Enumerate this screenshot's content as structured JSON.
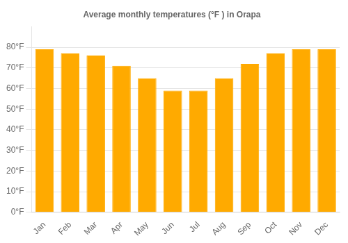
{
  "chart_data": {
    "type": "bar",
    "title": "Average monthly temperatures (°F ) in Orapa",
    "categories": [
      "Jan",
      "Feb",
      "Mar",
      "Apr",
      "May",
      "Jun",
      "Jul",
      "Aug",
      "Sep",
      "Oct",
      "Nov",
      "Dec"
    ],
    "values": [
      79,
      77,
      76,
      71,
      65,
      59,
      59,
      65,
      72,
      77,
      79,
      79
    ],
    "color": "#FFAA00",
    "ylim": [
      0,
      90
    ],
    "yticks": [
      {
        "value": 0,
        "label": "0°F"
      },
      {
        "value": 10,
        "label": "10°F"
      },
      {
        "value": 20,
        "label": "20°F"
      },
      {
        "value": 30,
        "label": "30°F"
      },
      {
        "value": 40,
        "label": "40°F"
      },
      {
        "value": 50,
        "label": "50°F"
      },
      {
        "value": 60,
        "label": "60°F"
      },
      {
        "value": 70,
        "label": "70°F"
      },
      {
        "value": 80,
        "label": "80°F"
      }
    ],
    "grid": true
  }
}
